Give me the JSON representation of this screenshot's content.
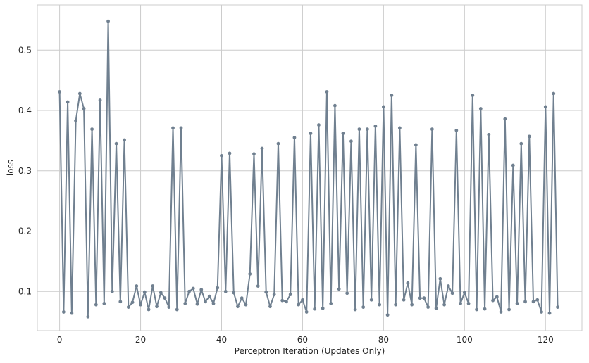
{
  "chart_data": {
    "type": "line",
    "xlabel": "Perceptron Iteration (Updates Only)",
    "ylabel": "loss",
    "xlim": [
      -5.5,
      129
    ],
    "ylim": [
      0.035,
      0.575
    ],
    "xticks": [
      0,
      20,
      40,
      60,
      80,
      100,
      120
    ],
    "yticks": [
      0.1,
      0.2,
      0.3,
      0.4,
      0.5
    ],
    "grid": true,
    "line_color": "#708090",
    "series": [
      {
        "x": [
          0,
          1,
          2,
          3,
          4,
          5,
          6,
          7,
          8,
          9,
          10,
          11,
          12,
          13,
          14,
          15,
          16,
          17,
          18,
          19,
          20,
          21,
          22,
          23,
          24,
          25,
          26,
          27,
          28,
          29,
          30,
          31,
          32,
          33,
          34,
          35,
          36,
          37,
          38,
          39,
          40,
          41,
          42,
          43,
          44,
          45,
          46,
          47,
          48,
          49,
          50,
          51,
          52,
          53,
          54,
          55,
          56,
          57,
          58,
          59,
          60,
          61,
          62,
          63,
          64,
          65,
          66,
          67,
          68,
          69,
          70,
          71,
          72,
          73,
          74,
          75,
          76,
          77,
          78,
          79,
          80,
          81,
          82,
          83,
          84,
          85,
          86,
          87,
          88,
          89,
          90,
          91,
          92,
          93,
          94,
          95,
          96,
          97,
          98,
          99,
          100,
          101,
          102,
          103,
          104,
          105,
          106,
          107,
          108,
          109,
          110,
          111,
          112,
          113,
          114,
          115,
          116,
          117,
          118,
          119,
          120,
          121,
          122,
          123
        ],
        "values": [
          0.431,
          0.066,
          0.414,
          0.064,
          0.383,
          0.428,
          0.403,
          0.058,
          0.369,
          0.078,
          0.417,
          0.08,
          0.548,
          0.1,
          0.345,
          0.083,
          0.351,
          0.074,
          0.082,
          0.109,
          0.078,
          0.099,
          0.07,
          0.109,
          0.075,
          0.098,
          0.089,
          0.074,
          0.371,
          0.07,
          0.371,
          0.08,
          0.1,
          0.105,
          0.079,
          0.103,
          0.083,
          0.092,
          0.08,
          0.106,
          0.325,
          0.1,
          0.329,
          0.098,
          0.075,
          0.089,
          0.078,
          0.129,
          0.328,
          0.109,
          0.337,
          0.099,
          0.075,
          0.095,
          0.345,
          0.085,
          0.083,
          0.095,
          0.355,
          0.078,
          0.086,
          0.066,
          0.362,
          0.071,
          0.376,
          0.072,
          0.431,
          0.08,
          0.408,
          0.104,
          0.362,
          0.097,
          0.349,
          0.07,
          0.369,
          0.074,
          0.369,
          0.086,
          0.374,
          0.078,
          0.406,
          0.061,
          0.425,
          0.078,
          0.371,
          0.086,
          0.114,
          0.078,
          0.343,
          0.089,
          0.089,
          0.074,
          0.369,
          0.072,
          0.121,
          0.078,
          0.109,
          0.097,
          0.367,
          0.08,
          0.098,
          0.08,
          0.425,
          0.07,
          0.403,
          0.071,
          0.36,
          0.085,
          0.091,
          0.066,
          0.386,
          0.07,
          0.309,
          0.08,
          0.345,
          0.083,
          0.357,
          0.083,
          0.086,
          0.066,
          0.406,
          0.064,
          0.428,
          0.074
        ]
      }
    ]
  }
}
